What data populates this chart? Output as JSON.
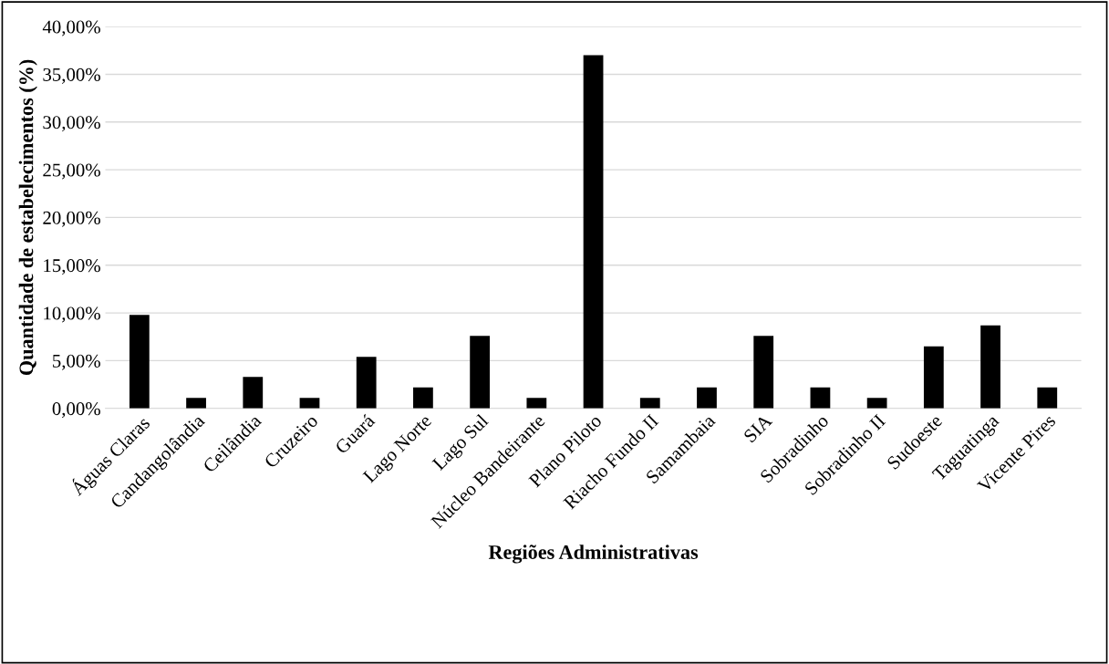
{
  "chart_data": {
    "type": "bar",
    "xlabel": "Regiões Administrativas",
    "ylabel": "Quantidade de estabelecimentos (%)",
    "categories": [
      "Águas Claras",
      "Candangolândia",
      "Ceilândia",
      "Cruzeiro",
      "Guará",
      "Lago Norte",
      "Lago Sul",
      "Núcleo Bandeirante",
      "Plano Piloto",
      "Riacho Fundo II",
      "Samambaia",
      "SIA",
      "Sobradinho",
      "Sobradinho II",
      "Sudoeste",
      "Taguatinga",
      "Vicente Pires"
    ],
    "values": [
      9.8,
      1.1,
      3.3,
      1.1,
      5.4,
      2.2,
      7.6,
      1.1,
      37.0,
      1.1,
      2.2,
      7.6,
      2.2,
      1.1,
      6.5,
      8.7,
      2.2
    ],
    "color": "#000000",
    "ylim": [
      0,
      40
    ],
    "yticks": [
      {
        "value": 0,
        "label": "0,00%"
      },
      {
        "value": 5,
        "label": "5,00%"
      },
      {
        "value": 10,
        "label": "10,00%"
      },
      {
        "value": 15,
        "label": "15,00%"
      },
      {
        "value": 20,
        "label": "20,00%"
      },
      {
        "value": 25,
        "label": "25,00%"
      },
      {
        "value": 30,
        "label": "30,00%"
      },
      {
        "value": 35,
        "label": "35,00%"
      },
      {
        "value": 40,
        "label": "40,00%"
      }
    ],
    "grid": "y"
  }
}
